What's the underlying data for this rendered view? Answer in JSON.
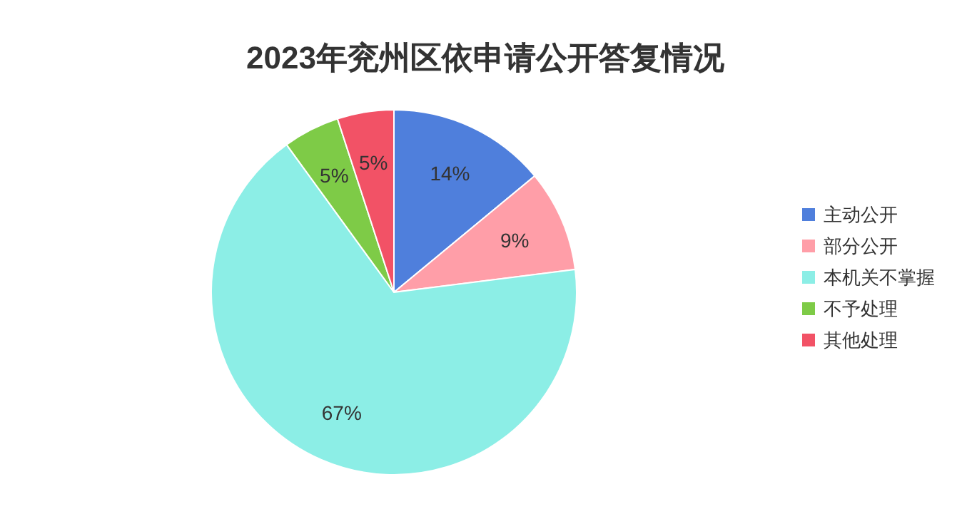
{
  "chart_data": {
    "type": "pie",
    "title": "2023年兖州区依申请公开答复情况",
    "categories": [
      "主动公开",
      "部分公开",
      "本机关不掌握",
      "不予处理",
      "其他处理"
    ],
    "values": [
      14,
      9,
      67,
      5,
      5
    ],
    "colors": [
      "#4f7fdc",
      "#ff9ea8",
      "#8ceee6",
      "#7ecb47",
      "#f25266"
    ],
    "value_labels": [
      "14%",
      "9%",
      "67%",
      "5%",
      "5%"
    ],
    "legend": "right"
  }
}
